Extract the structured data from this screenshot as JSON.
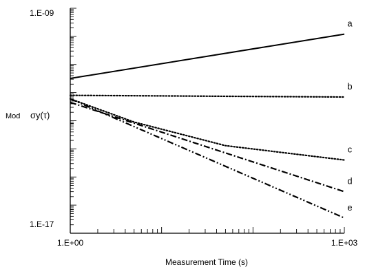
{
  "chart_data": {
    "type": "line",
    "xscale": "log",
    "yscale": "log",
    "xlim": [
      1,
      1000
    ],
    "ylim": [
      1e-17,
      1e-09
    ],
    "xlabel": "Measurement Time (s)",
    "ylabel": "Mod",
    "ylabel_symbol": "σy(τ)",
    "x_tick_labels": [
      "1.E+00",
      "1.E+03"
    ],
    "y_tick_labels": [
      "1.E-09",
      "1.E-17"
    ],
    "series": [
      {
        "name": "a",
        "style": "solid",
        "x": [
          1,
          1000
        ],
        "y": [
          3.2e-12,
          1.2e-10
        ]
      },
      {
        "name": "b",
        "style": "dotted",
        "x": [
          1,
          1000
        ],
        "y": [
          8e-13,
          7e-13
        ]
      },
      {
        "name": "c",
        "style": "dotted",
        "x": [
          1,
          5,
          50,
          1000
        ],
        "y": [
          6e-13,
          9e-14,
          1.3e-14,
          4e-15
        ]
      },
      {
        "name": "d",
        "style": "dashdot",
        "x": [
          1,
          1000
        ],
        "y": [
          4.5e-13,
          3e-16
        ]
      },
      {
        "name": "e",
        "style": "dashdotdot",
        "x": [
          1,
          1000
        ],
        "y": [
          6e-13,
          3.5e-17
        ]
      }
    ]
  }
}
